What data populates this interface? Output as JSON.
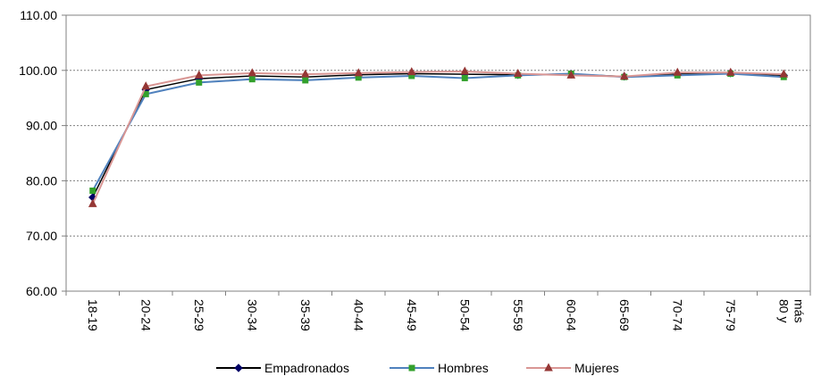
{
  "chart_data": {
    "type": "line",
    "title": "",
    "xlabel": "",
    "ylabel": "",
    "categories": [
      "18-19",
      "20-24",
      "25-29",
      "30-34",
      "35-39",
      "40-44",
      "45-49",
      "50-54",
      "55-59",
      "60-64",
      "65-69",
      "70-74",
      "75-79",
      "80 y más"
    ],
    "ylim": [
      60,
      110
    ],
    "yticks": [
      "60.00",
      "70.00",
      "80.00",
      "90.00",
      "100.00",
      "110.00"
    ],
    "grid": true,
    "legend_position": "bottom",
    "series": [
      {
        "name": "Empadronados",
        "color": "#000066",
        "line_color": "#000000",
        "marker": "diamond",
        "values": [
          77.0,
          96.5,
          98.5,
          99.0,
          98.8,
          99.2,
          99.4,
          99.3,
          99.2,
          99.3,
          98.9,
          99.4,
          99.5,
          99.1
        ]
      },
      {
        "name": "Hombres",
        "color": "#33A02C",
        "line_color": "#4F81BD",
        "marker": "square",
        "values": [
          78.2,
          95.7,
          97.8,
          98.4,
          98.2,
          98.7,
          99.0,
          98.6,
          99.1,
          99.4,
          98.8,
          99.1,
          99.4,
          98.8
        ]
      },
      {
        "name": "Mujeres",
        "color": "#953735",
        "line_color": "#D99694",
        "marker": "triangle",
        "values": [
          75.8,
          97.1,
          99.1,
          99.5,
          99.3,
          99.5,
          99.7,
          99.8,
          99.4,
          99.1,
          98.9,
          99.6,
          99.6,
          99.3
        ]
      }
    ]
  }
}
